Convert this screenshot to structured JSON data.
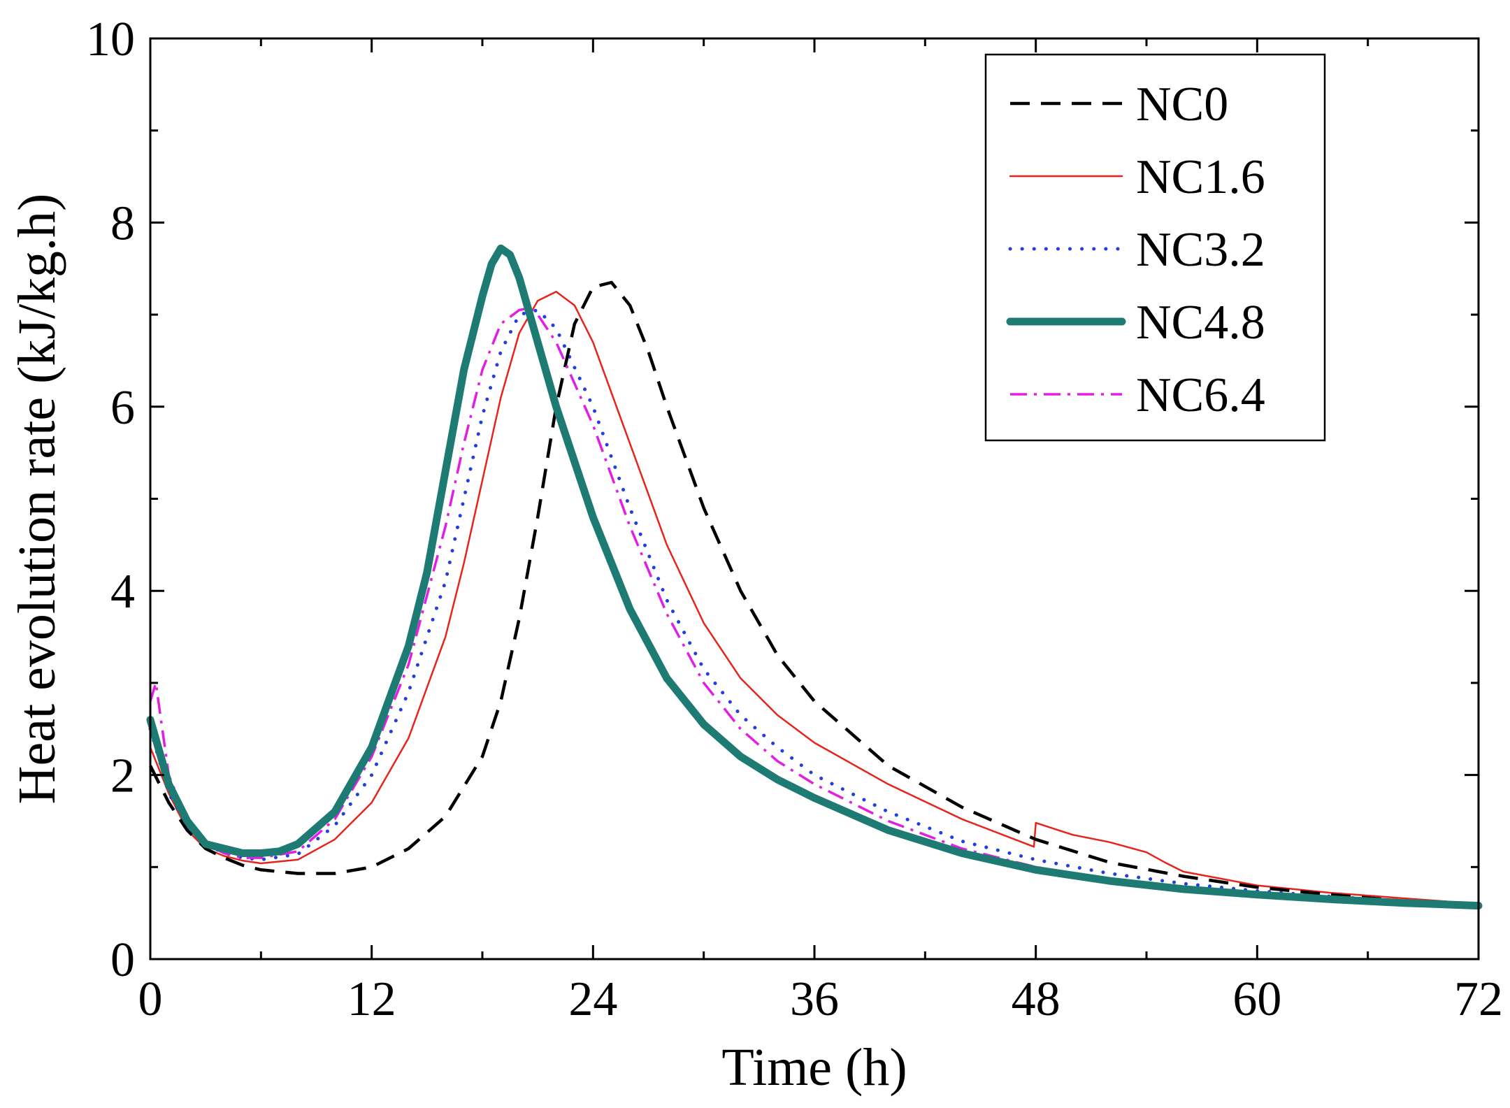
{
  "chart_data": {
    "type": "line",
    "title": "",
    "xlabel": "Time (h)",
    "ylabel": "Heat evolution rate (kJ/kg.h)",
    "xlim": [
      0,
      72
    ],
    "ylim": [
      0,
      10
    ],
    "xticks": [
      0,
      12,
      24,
      36,
      48,
      60,
      72
    ],
    "yticks": [
      0,
      2,
      4,
      6,
      8,
      10
    ],
    "grid": false,
    "legend_position": "top-right",
    "series": [
      {
        "name": "NC0",
        "color": "#000000",
        "style": "dashed",
        "x": [
          0,
          1,
          2,
          3,
          4,
          5,
          6,
          8,
          10,
          12,
          14,
          16,
          18,
          19,
          20,
          21,
          22,
          23,
          24,
          25,
          26,
          27,
          28,
          30,
          32,
          34,
          36,
          40,
          44,
          48,
          52,
          56,
          60,
          64,
          68,
          72
        ],
        "y": [
          2.1,
          1.7,
          1.4,
          1.2,
          1.1,
          1.02,
          0.97,
          0.93,
          0.93,
          1.0,
          1.2,
          1.55,
          2.2,
          2.8,
          3.7,
          4.8,
          6.0,
          6.9,
          7.3,
          7.35,
          7.1,
          6.6,
          6.0,
          4.9,
          4.0,
          3.3,
          2.8,
          2.1,
          1.65,
          1.3,
          1.05,
          0.9,
          0.78,
          0.7,
          0.63,
          0.57
        ]
      },
      {
        "name": "NC1.6",
        "color": "#e8231c",
        "style": "solid",
        "x": [
          0,
          1,
          2,
          3,
          4,
          5,
          6,
          8,
          10,
          12,
          14,
          16,
          17,
          18,
          19,
          20,
          21,
          22,
          23,
          24,
          26,
          28,
          30,
          32,
          34,
          36,
          40,
          44,
          47.9,
          48,
          50,
          52,
          54,
          55,
          56,
          60,
          64,
          68,
          72
        ],
        "y": [
          2.3,
          1.8,
          1.4,
          1.2,
          1.12,
          1.07,
          1.04,
          1.08,
          1.3,
          1.7,
          2.4,
          3.5,
          4.3,
          5.2,
          6.1,
          6.8,
          7.15,
          7.25,
          7.1,
          6.7,
          5.6,
          4.5,
          3.65,
          3.05,
          2.65,
          2.35,
          1.9,
          1.52,
          1.22,
          1.48,
          1.35,
          1.27,
          1.16,
          1.05,
          0.95,
          0.8,
          0.72,
          0.66,
          0.6
        ]
      },
      {
        "name": "NC3.2",
        "color": "#1f3fe0",
        "style": "dotted",
        "x": [
          0,
          1,
          2,
          3,
          4,
          5,
          6,
          8,
          10,
          12,
          14,
          16,
          17,
          18,
          19,
          20,
          21,
          22,
          24,
          26,
          28,
          30,
          32,
          34,
          36,
          40,
          44,
          48,
          52,
          56,
          60,
          64,
          68,
          72
        ],
        "y": [
          2.5,
          1.8,
          1.45,
          1.25,
          1.15,
          1.1,
          1.08,
          1.14,
          1.45,
          2.0,
          2.9,
          4.1,
          5.0,
          5.9,
          6.6,
          7.0,
          7.05,
          6.85,
          6.0,
          4.9,
          3.9,
          3.15,
          2.65,
          2.3,
          2.0,
          1.6,
          1.28,
          1.08,
          0.93,
          0.82,
          0.74,
          0.68,
          0.63,
          0.58
        ]
      },
      {
        "name": "NC4.8",
        "color": "#1e7b74",
        "style": "thick",
        "x": [
          0,
          1,
          2,
          3,
          4,
          5,
          6,
          7,
          8,
          10,
          12,
          14,
          15,
          16,
          17,
          18,
          18.5,
          19,
          19.5,
          20,
          21,
          22,
          24,
          26,
          28,
          30,
          32,
          34,
          36,
          40,
          44,
          48,
          52,
          56,
          60,
          64,
          68,
          72
        ],
        "y": [
          2.6,
          1.9,
          1.5,
          1.25,
          1.2,
          1.15,
          1.15,
          1.17,
          1.25,
          1.6,
          2.3,
          3.4,
          4.2,
          5.3,
          6.4,
          7.2,
          7.55,
          7.72,
          7.65,
          7.4,
          6.7,
          6.0,
          4.8,
          3.8,
          3.05,
          2.55,
          2.2,
          1.95,
          1.75,
          1.4,
          1.15,
          0.97,
          0.85,
          0.76,
          0.7,
          0.65,
          0.61,
          0.58
        ]
      },
      {
        "name": "NC6.4",
        "color": "#e21ee2",
        "style": "dashdot",
        "x": [
          0,
          0.3,
          1,
          2,
          3,
          4,
          5,
          6,
          8,
          10,
          12,
          14,
          16,
          17,
          18,
          19,
          20,
          20.5,
          21,
          22,
          24,
          26,
          28,
          30,
          32,
          34,
          36,
          40,
          44,
          48,
          52,
          56,
          60,
          64,
          68,
          72
        ],
        "y": [
          2.8,
          3.0,
          2.0,
          1.5,
          1.25,
          1.15,
          1.1,
          1.1,
          1.17,
          1.52,
          2.2,
          3.2,
          4.7,
          5.6,
          6.4,
          6.9,
          7.05,
          7.07,
          7.0,
          6.7,
          5.8,
          4.7,
          3.75,
          3.0,
          2.5,
          2.15,
          1.9,
          1.5,
          1.2,
          1.0,
          0.87,
          0.78,
          0.72,
          0.67,
          0.62,
          0.59
        ]
      }
    ]
  }
}
